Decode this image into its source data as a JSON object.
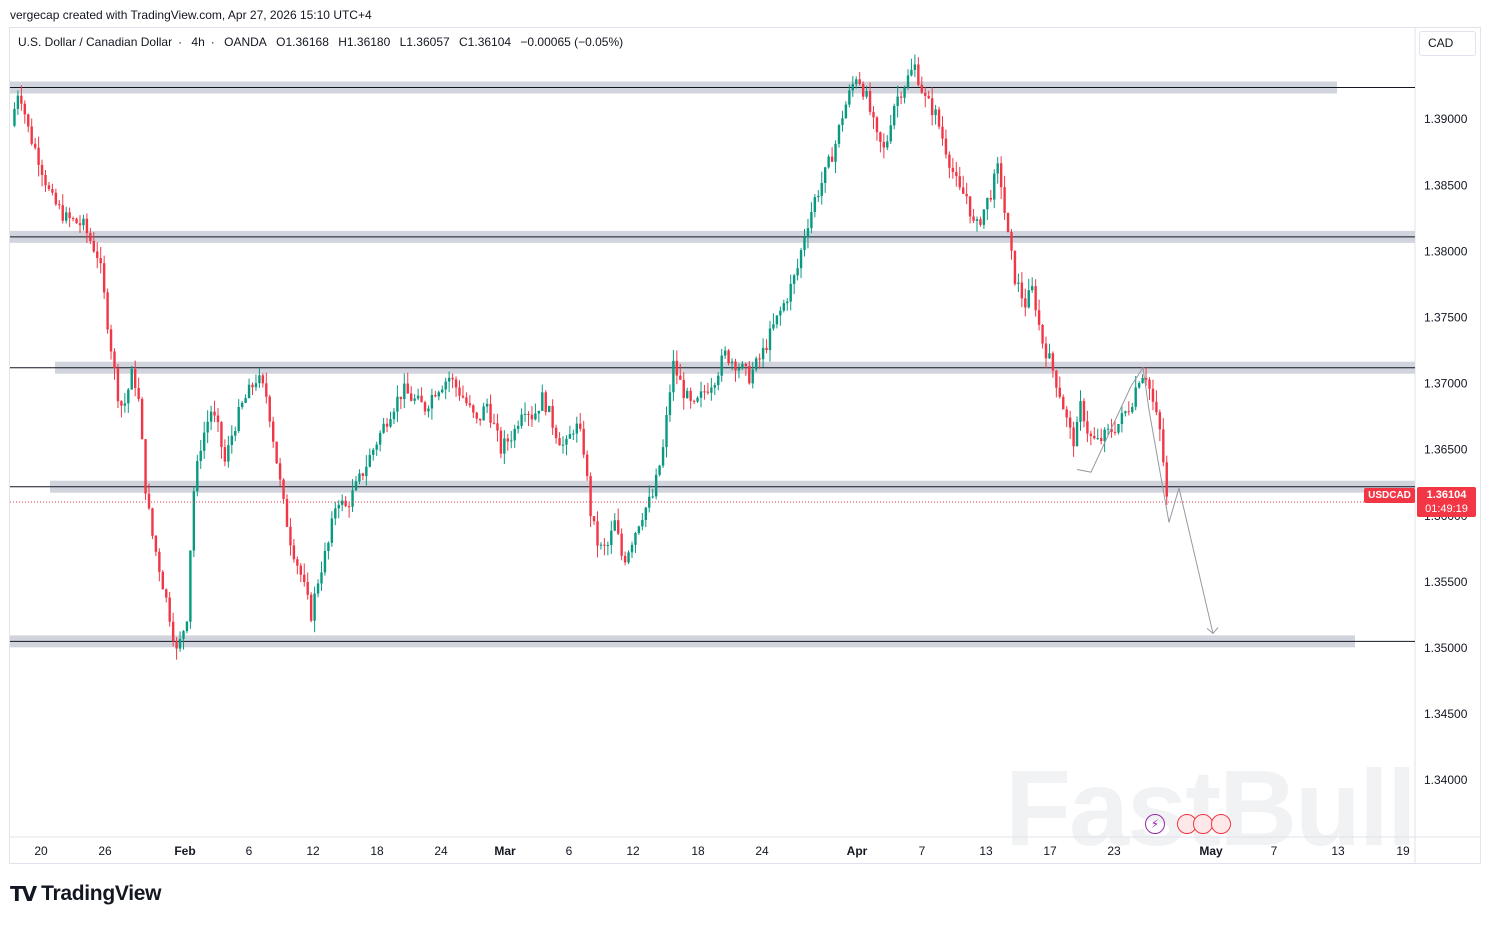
{
  "credit": "vergecap created with TradingView.com, Apr 27, 2026 15:10 UTC+4",
  "legend": {
    "symbol_name": "U.S. Dollar / Canadian Dollar",
    "interval": "4h",
    "exchange": "OANDA",
    "open": "O1.36168",
    "high": "H1.36180",
    "low": "L1.36057",
    "close": "C1.36104",
    "change": "−0.00065 (−0.05%)"
  },
  "currency": "CAD",
  "price_tag": {
    "symbol": "USDCAD",
    "price": "1.36104",
    "countdown": "01:49:19"
  },
  "brand": {
    "mark": "TV",
    "name": "TradingView"
  },
  "watermark": "FastBull",
  "colors": {
    "up": "#089981",
    "down": "#f23645",
    "zone": "#d1d4dc",
    "line": "#131722",
    "last": "#f23645"
  },
  "chart_data": {
    "type": "candlestick",
    "ylim": [
      1.3357,
      1.3969
    ],
    "y_ticks": [
      "1.39000",
      "1.38500",
      "1.38000",
      "1.37500",
      "1.37000",
      "1.36500",
      "1.36000",
      "1.35500",
      "1.35000",
      "1.34500",
      "1.34000"
    ],
    "x_ticks": [
      "20",
      "26",
      "Feb",
      "6",
      "12",
      "18",
      "24",
      "Mar",
      "6",
      "12",
      "18",
      "24",
      "Apr",
      "7",
      "13",
      "17",
      "23",
      "May",
      "7",
      "13",
      "19"
    ],
    "path": [
      [
        1.3895,
        0
      ],
      [
        1.3925,
        8
      ],
      [
        1.389,
        18
      ],
      [
        1.387,
        28
      ],
      [
        1.384,
        40
      ],
      [
        1.3825,
        55
      ],
      [
        1.382,
        72
      ],
      [
        1.3795,
        88
      ],
      [
        1.375,
        96
      ],
      [
        1.3695,
        106
      ],
      [
        1.368,
        112
      ],
      [
        1.371,
        122
      ],
      [
        1.3685,
        128
      ],
      [
        1.3625,
        134
      ],
      [
        1.359,
        140
      ],
      [
        1.3555,
        150
      ],
      [
        1.352,
        160
      ],
      [
        1.3495,
        166
      ],
      [
        1.3525,
        176
      ],
      [
        1.3615,
        182
      ],
      [
        1.3655,
        190
      ],
      [
        1.368,
        200
      ],
      [
        1.3665,
        207
      ],
      [
        1.364,
        214
      ],
      [
        1.3665,
        222
      ],
      [
        1.3685,
        232
      ],
      [
        1.3705,
        246
      ],
      [
        1.369,
        256
      ],
      [
        1.365,
        264
      ],
      [
        1.361,
        272
      ],
      [
        1.358,
        280
      ],
      [
        1.3555,
        290
      ],
      [
        1.3525,
        300
      ],
      [
        1.3555,
        308
      ],
      [
        1.358,
        318
      ],
      [
        1.3615,
        326
      ],
      [
        1.3605,
        334
      ],
      [
        1.362,
        344
      ],
      [
        1.364,
        356
      ],
      [
        1.366,
        368
      ],
      [
        1.368,
        380
      ],
      [
        1.3695,
        392
      ],
      [
        1.3688,
        402
      ],
      [
        1.3682,
        414
      ],
      [
        1.3695,
        424
      ],
      [
        1.3705,
        438
      ],
      [
        1.369,
        452
      ],
      [
        1.367,
        466
      ],
      [
        1.3685,
        476
      ],
      [
        1.365,
        490
      ],
      [
        1.3665,
        504
      ],
      [
        1.3685,
        512
      ],
      [
        1.3675,
        522
      ],
      [
        1.369,
        532
      ],
      [
        1.3665,
        544
      ],
      [
        1.365,
        554
      ],
      [
        1.367,
        564
      ],
      [
        1.3655,
        572
      ],
      [
        1.36,
        580
      ],
      [
        1.3575,
        588
      ],
      [
        1.3575,
        596
      ],
      [
        1.3595,
        604
      ],
      [
        1.3565,
        612
      ],
      [
        1.358,
        620
      ],
      [
        1.36,
        630
      ],
      [
        1.3615,
        642
      ],
      [
        1.365,
        652
      ],
      [
        1.3715,
        662
      ],
      [
        1.3695,
        672
      ],
      [
        1.368,
        682
      ],
      [
        1.3695,
        694
      ],
      [
        1.3705,
        704
      ],
      [
        1.3722,
        714
      ],
      [
        1.3715,
        726
      ],
      [
        1.3705,
        738
      ],
      [
        1.372,
        750
      ],
      [
        1.3742,
        762
      ],
      [
        1.3762,
        774
      ],
      [
        1.3785,
        786
      ],
      [
        1.3815,
        794
      ],
      [
        1.384,
        804
      ],
      [
        1.3858,
        814
      ],
      [
        1.388,
        824
      ],
      [
        1.3905,
        832
      ],
      [
        1.3935,
        846
      ],
      [
        1.3915,
        856
      ],
      [
        1.3885,
        866
      ],
      [
        1.3875,
        874
      ],
      [
        1.391,
        882
      ],
      [
        1.3925,
        892
      ],
      [
        1.394,
        904
      ],
      [
        1.3915,
        914
      ],
      [
        1.3905,
        924
      ],
      [
        1.3885,
        932
      ],
      [
        1.3865,
        940
      ],
      [
        1.3845,
        948
      ],
      [
        1.3842,
        956
      ],
      [
        1.3815,
        964
      ],
      [
        1.383,
        972
      ],
      [
        1.3845,
        980
      ],
      [
        1.3865,
        988
      ],
      [
        1.3815,
        996
      ],
      [
        1.378,
        1004
      ],
      [
        1.376,
        1014
      ],
      [
        1.3772,
        1022
      ],
      [
        1.3735,
        1030
      ],
      [
        1.3715,
        1040
      ],
      [
        1.369,
        1050
      ],
      [
        1.3665,
        1058
      ],
      [
        1.3655,
        1064
      ],
      [
        1.3685,
        1070
      ],
      [
        1.366,
        1078
      ],
      [
        1.3655,
        1086
      ],
      [
        1.3662,
        1096
      ],
      [
        1.367,
        1108
      ],
      [
        1.3685,
        1120
      ],
      [
        1.3705,
        1128
      ],
      [
        1.371,
        1134
      ],
      [
        1.3685,
        1142
      ],
      [
        1.366,
        1150
      ],
      [
        1.361,
        1156
      ]
    ]
  },
  "zones": [
    1.3924,
    1.3811,
    1.3712,
    1.3622,
    1.3505
  ],
  "hlines": [
    1.3924,
    1.3811,
    1.3712,
    1.3622,
    1.3505
  ],
  "zigzag": [
    [
      1.3635,
      1066
    ],
    [
      1.3633,
      1080
    ],
    [
      1.3698,
      1120
    ],
    [
      1.3712,
      1132
    ],
    [
      1.368,
      1138
    ],
    [
      1.3595,
      1158
    ],
    [
      1.3621,
      1168
    ],
    [
      1.3511,
      1202
    ]
  ]
}
